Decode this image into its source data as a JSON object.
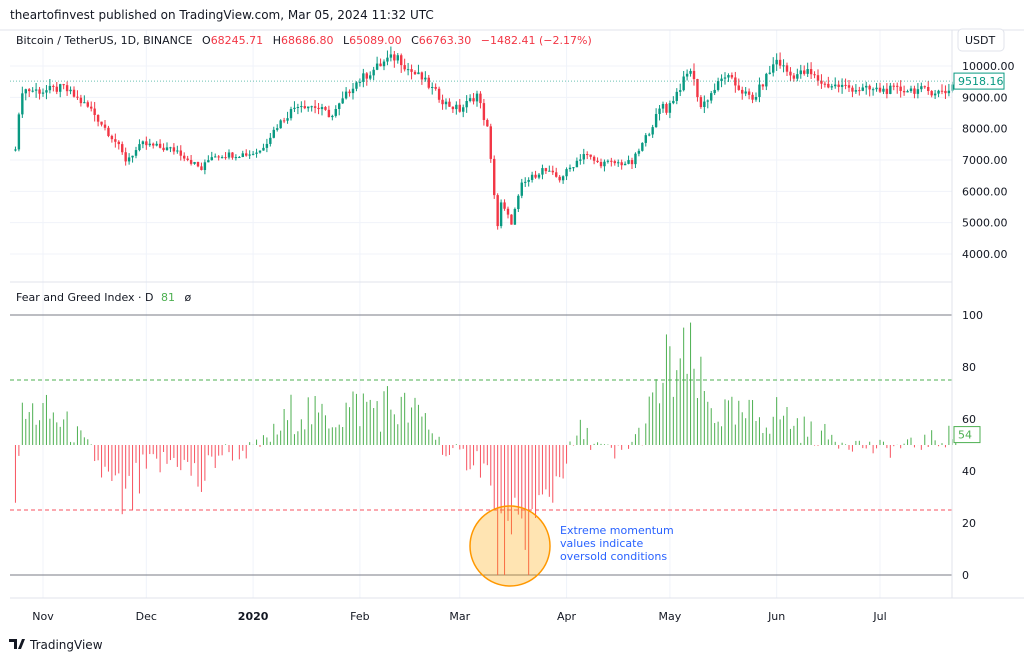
{
  "header": {
    "published": "theartofinvest published on TradingView.com, Mar 05, 2024 11:32 UTC"
  },
  "legend": {
    "symbol": "Bitcoin / TetherUS, 1D, BINANCE",
    "o_label": "O",
    "o": "68245.71",
    "h_label": "H",
    "h": "68686.80",
    "l_label": "L",
    "l": "65089.00",
    "c_label": "C",
    "c": "66763.30",
    "change": "−1482.41 (−2.17%)"
  },
  "currency_button": "USDT",
  "last_price": "9518.16",
  "indicator": {
    "name": "Fear and Greed Index · D",
    "value": "81",
    "symbol": "ø",
    "last": "54"
  },
  "annotation": [
    "Extreme momentum",
    "values indicate",
    "oversold conditions"
  ],
  "footer": {
    "logo_text": "TradingView"
  },
  "colors": {
    "up": "#089981",
    "down": "#f23645",
    "bar_up": "#4caf50",
    "bar_down": "#f7525f",
    "annotation": "#2962ff",
    "circle": "#ff9800"
  },
  "chart_data": [
    {
      "type": "candlestick",
      "title": "Bitcoin / TetherUS, 1D, BINANCE",
      "x_start": "2019-10-24",
      "x_end": "2020-07-23",
      "y_ticks": [
        "4000.00",
        "5000.00",
        "6000.00",
        "7000.00",
        "8000.00",
        "9000.00",
        "10000.00"
      ],
      "ylim": [
        3500,
        10800
      ],
      "close_keypoints": [
        [
          "2019-10-24",
          7450
        ],
        [
          "2019-10-26",
          9250
        ],
        [
          "2019-11-01",
          9200
        ],
        [
          "2019-11-07",
          9300
        ],
        [
          "2019-11-15",
          8600
        ],
        [
          "2019-11-22",
          7600
        ],
        [
          "2019-11-25",
          7000
        ],
        [
          "2019-11-30",
          7500
        ],
        [
          "2019-12-05",
          7400
        ],
        [
          "2019-12-10",
          7300
        ],
        [
          "2019-12-17",
          6700
        ],
        [
          "2019-12-20",
          7150
        ],
        [
          "2019-12-31",
          7200
        ],
        [
          "2020-01-03",
          7300
        ],
        [
          "2020-01-08",
          8100
        ],
        [
          "2020-01-14",
          8800
        ],
        [
          "2020-01-19",
          8700
        ],
        [
          "2020-01-24",
          8400
        ],
        [
          "2020-01-30",
          9400
        ],
        [
          "2020-02-09",
          10200
        ],
        [
          "2020-02-12",
          10300
        ],
        [
          "2020-02-15",
          9900
        ],
        [
          "2020-02-19",
          9600
        ],
        [
          "2020-02-26",
          8800
        ],
        [
          "2020-03-01",
          8600
        ],
        [
          "2020-03-06",
          9100
        ],
        [
          "2020-03-09",
          8000
        ],
        [
          "2020-03-12",
          4900
        ],
        [
          "2020-03-13",
          5600
        ],
        [
          "2020-03-16",
          5000
        ],
        [
          "2020-03-19",
          6200
        ],
        [
          "2020-03-25",
          6700
        ],
        [
          "2020-03-30",
          6400
        ],
        [
          "2020-04-06",
          7200
        ],
        [
          "2020-04-10",
          6900
        ],
        [
          "2020-04-20",
          6900
        ],
        [
          "2020-04-23",
          7500
        ],
        [
          "2020-04-29",
          8800
        ],
        [
          "2020-04-30",
          8600
        ],
        [
          "2020-05-07",
          9900
        ],
        [
          "2020-05-10",
          8700
        ],
        [
          "2020-05-17",
          9700
        ],
        [
          "2020-05-25",
          8900
        ],
        [
          "2020-06-01",
          10200
        ],
        [
          "2020-06-05",
          9700
        ],
        [
          "2020-06-10",
          9800
        ],
        [
          "2020-06-15",
          9400
        ],
        [
          "2020-06-20",
          9350
        ],
        [
          "2020-06-25",
          9250
        ],
        [
          "2020-07-01",
          9230
        ],
        [
          "2020-07-10",
          9250
        ],
        [
          "2020-07-20",
          9160
        ],
        [
          "2020-07-23",
          9518.16
        ]
      ],
      "last_value": 9518.16
    },
    {
      "type": "bar",
      "title": "Fear and Greed Index",
      "baseline": 50,
      "ylim": [
        0,
        100
      ],
      "y_ticks": [
        "0",
        "20",
        "40",
        "60",
        "80",
        "100"
      ],
      "levels": {
        "upper": 75,
        "lower": 25
      },
      "x_ticks": [
        "Nov",
        "Dec",
        "2020",
        "Feb",
        "Mar",
        "Apr",
        "May",
        "Jun",
        "Jul"
      ],
      "keypoints": [
        [
          "2019-10-24",
          35
        ],
        [
          "2019-10-26",
          60
        ],
        [
          "2019-10-30",
          63
        ],
        [
          "2019-11-05",
          60
        ],
        [
          "2019-11-10",
          55
        ],
        [
          "2019-11-15",
          48
        ],
        [
          "2019-11-22",
          30
        ],
        [
          "2019-11-25",
          25
        ],
        [
          "2019-12-01",
          40
        ],
        [
          "2019-12-10",
          45
        ],
        [
          "2019-12-17",
          35
        ],
        [
          "2019-12-22",
          47
        ],
        [
          "2020-01-01",
          48
        ],
        [
          "2020-01-08",
          55
        ],
        [
          "2020-01-14",
          65
        ],
        [
          "2020-01-20",
          60
        ],
        [
          "2020-02-01",
          65
        ],
        [
          "2020-02-10",
          65
        ],
        [
          "2020-02-20",
          60
        ],
        [
          "2020-02-27",
          45
        ],
        [
          "2020-03-06",
          45
        ],
        [
          "2020-03-09",
          40
        ],
        [
          "2020-03-12",
          5
        ],
        [
          "2020-03-13",
          1
        ],
        [
          "2020-03-16",
          2
        ],
        [
          "2020-03-19",
          10
        ],
        [
          "2020-03-25",
          25
        ],
        [
          "2020-04-01",
          45
        ],
        [
          "2020-04-05",
          55
        ],
        [
          "2020-04-15",
          45
        ],
        [
          "2020-04-23",
          55
        ],
        [
          "2020-04-30",
          78
        ],
        [
          "2020-05-07",
          80
        ],
        [
          "2020-05-12",
          65
        ],
        [
          "2020-05-20",
          60
        ],
        [
          "2020-06-02",
          62
        ],
        [
          "2020-06-10",
          55
        ],
        [
          "2020-06-20",
          52
        ],
        [
          "2020-07-01",
          48
        ],
        [
          "2020-07-10",
          50
        ],
        [
          "2020-07-23",
          54
        ]
      ],
      "last_value": 54
    }
  ]
}
